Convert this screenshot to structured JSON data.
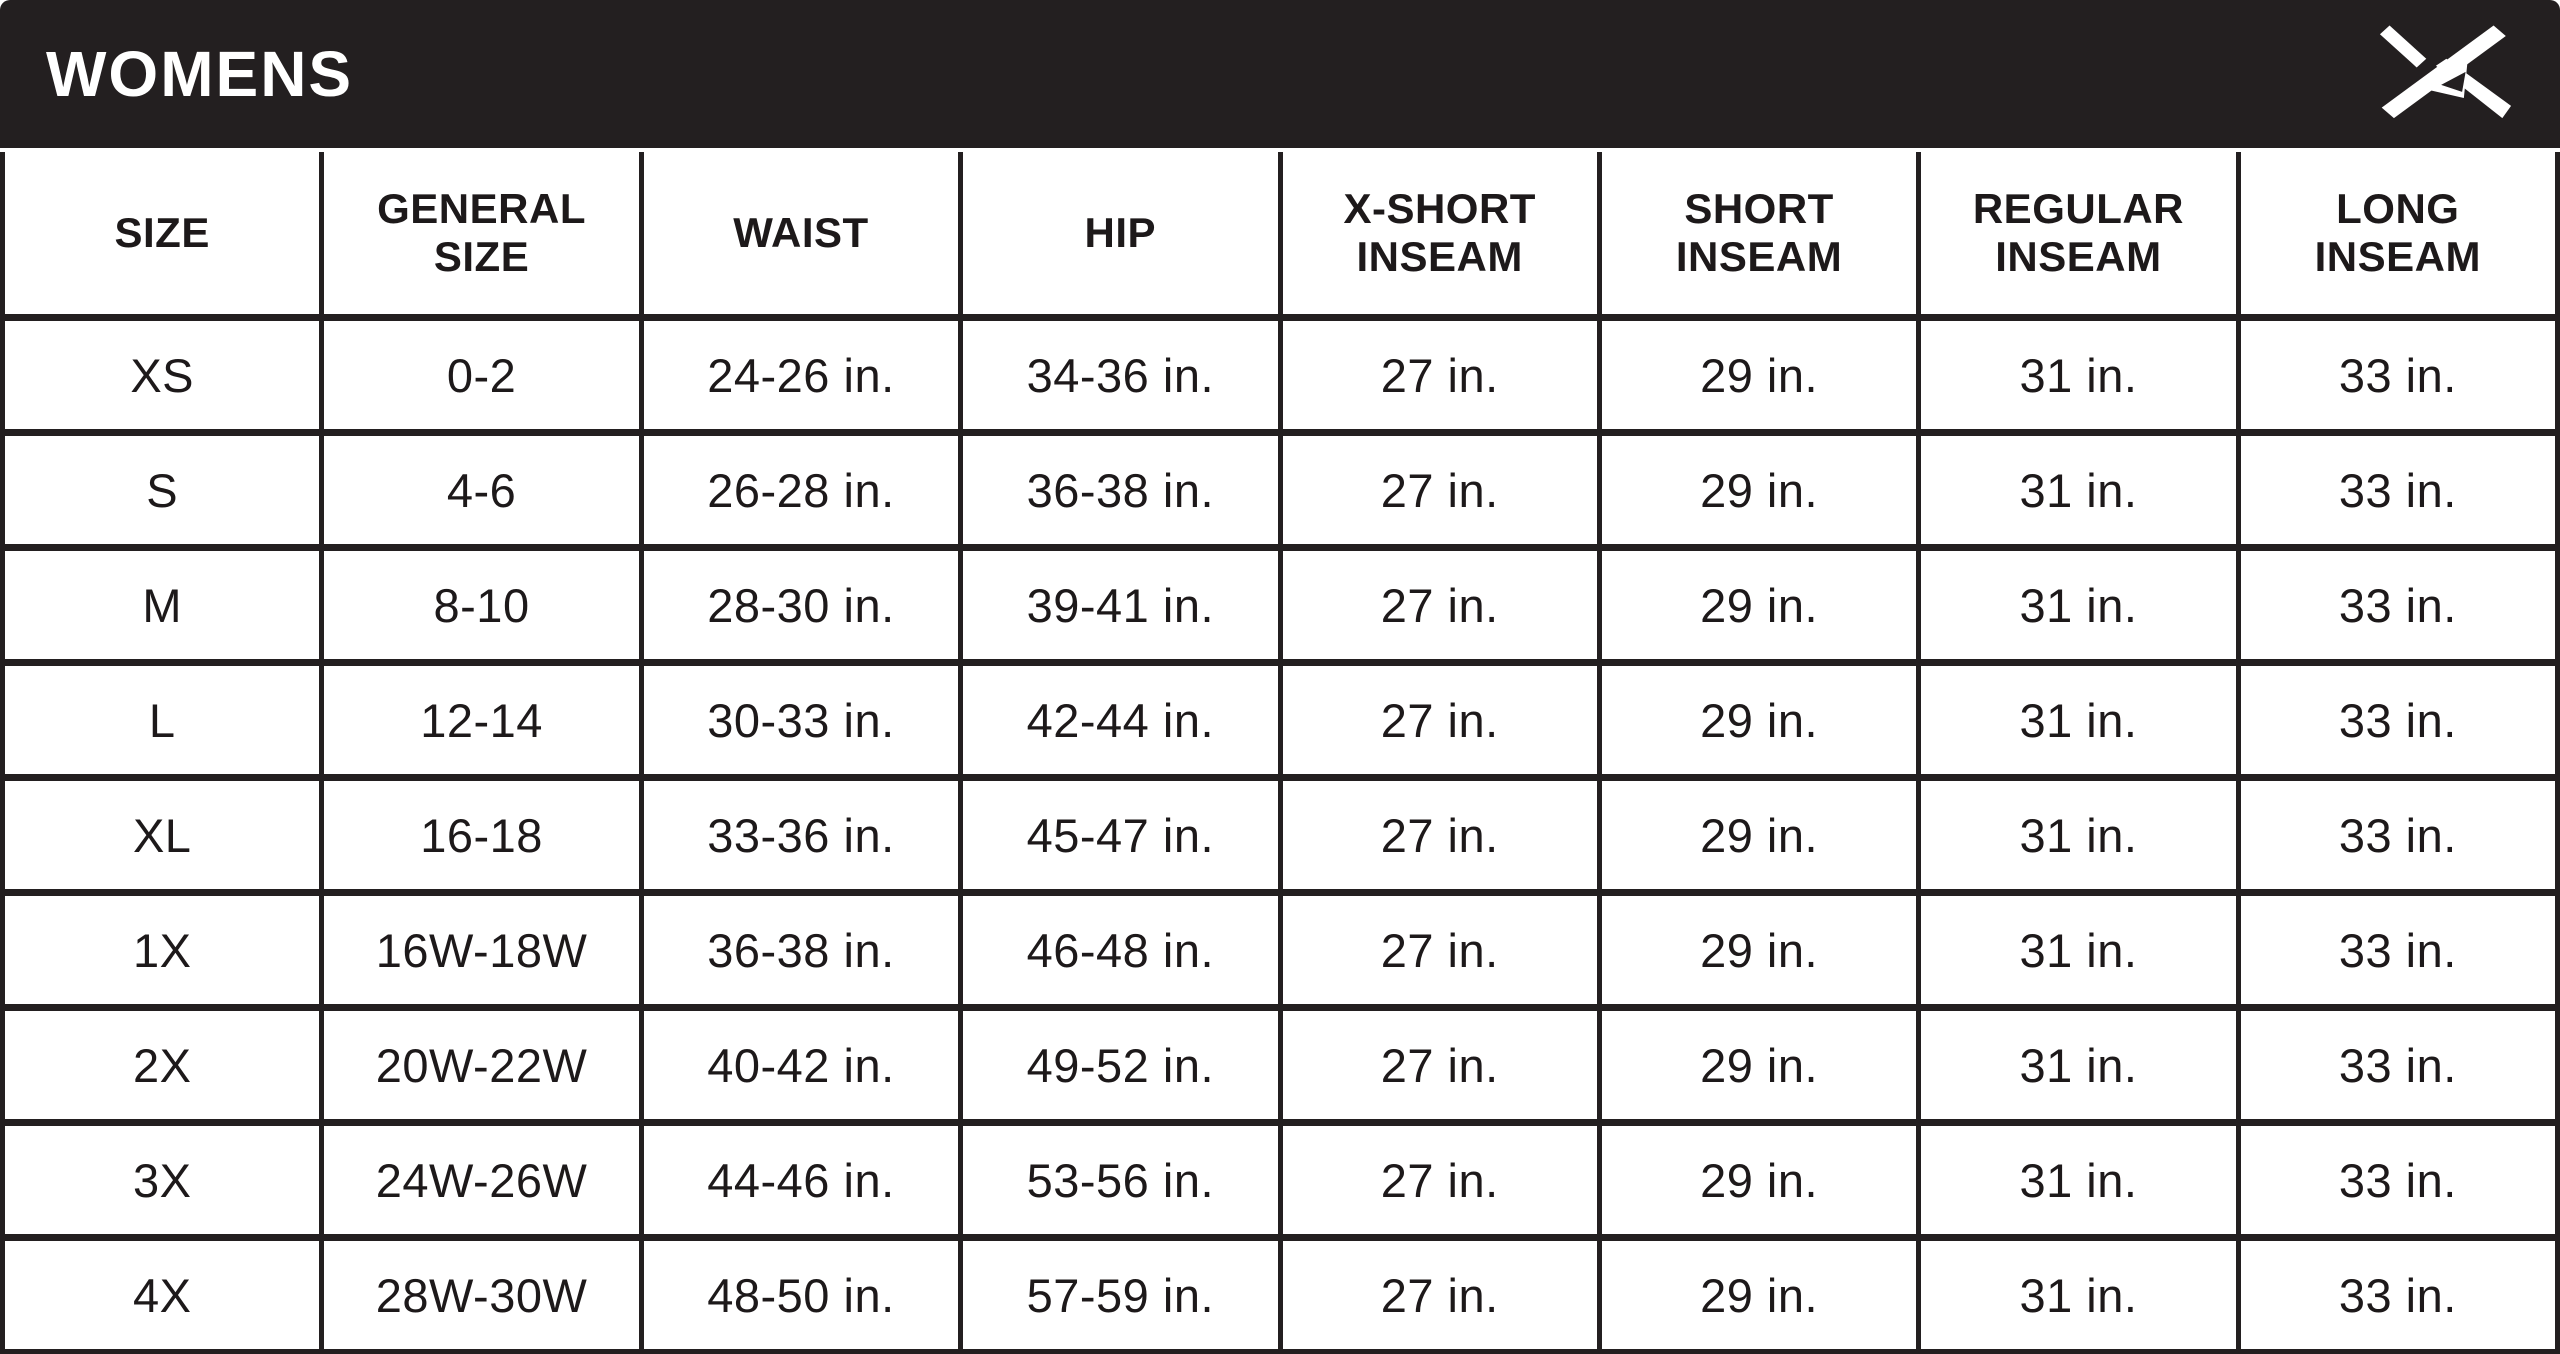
{
  "header_bar": {
    "title": "WOMENS",
    "logo_icon": "arctix-x-logo",
    "background_color": "#231f20",
    "title_color": "#ffffff"
  },
  "colors": {
    "table_border": "#231f20",
    "table_text": "#1d191a",
    "table_background": "#ffffff"
  },
  "chart_data": {
    "type": "table",
    "title": "WOMENS",
    "columns": [
      "SIZE",
      "GENERAL SIZE",
      "WAIST",
      "HIP",
      "X-SHORT INSEAM",
      "SHORT INSEAM",
      "REGULAR INSEAM",
      "LONG INSEAM"
    ],
    "column_keys": [
      "size",
      "general-size",
      "waist",
      "hip",
      "x-short-inseam",
      "short-inseam",
      "regular-inseam",
      "long-inseam"
    ],
    "rows": [
      [
        "XS",
        "0-2",
        "24-26 in.",
        "34-36 in.",
        "27 in.",
        "29 in.",
        "31 in.",
        "33 in."
      ],
      [
        "S",
        "4-6",
        "26-28 in.",
        "36-38 in.",
        "27 in.",
        "29 in.",
        "31 in.",
        "33 in."
      ],
      [
        "M",
        "8-10",
        "28-30 in.",
        "39-41 in.",
        "27 in.",
        "29 in.",
        "31 in.",
        "33 in."
      ],
      [
        "L",
        "12-14",
        "30-33 in.",
        "42-44 in.",
        "27 in.",
        "29 in.",
        "31 in.",
        "33 in."
      ],
      [
        "XL",
        "16-18",
        "33-36 in.",
        "45-47 in.",
        "27 in.",
        "29 in.",
        "31 in.",
        "33 in."
      ],
      [
        "1X",
        "16W-18W",
        "36-38 in.",
        "46-48 in.",
        "27 in.",
        "29 in.",
        "31 in.",
        "33 in."
      ],
      [
        "2X",
        "20W-22W",
        "40-42 in.",
        "49-52 in.",
        "27 in.",
        "29 in.",
        "31 in.",
        "33 in."
      ],
      [
        "3X",
        "24W-26W",
        "44-46 in.",
        "53-56 in.",
        "27 in.",
        "29 in.",
        "31 in.",
        "33 in."
      ],
      [
        "4X",
        "28W-30W",
        "48-50 in.",
        "57-59 in.",
        "27 in.",
        "29 in.",
        "31 in.",
        "33 in."
      ]
    ]
  }
}
